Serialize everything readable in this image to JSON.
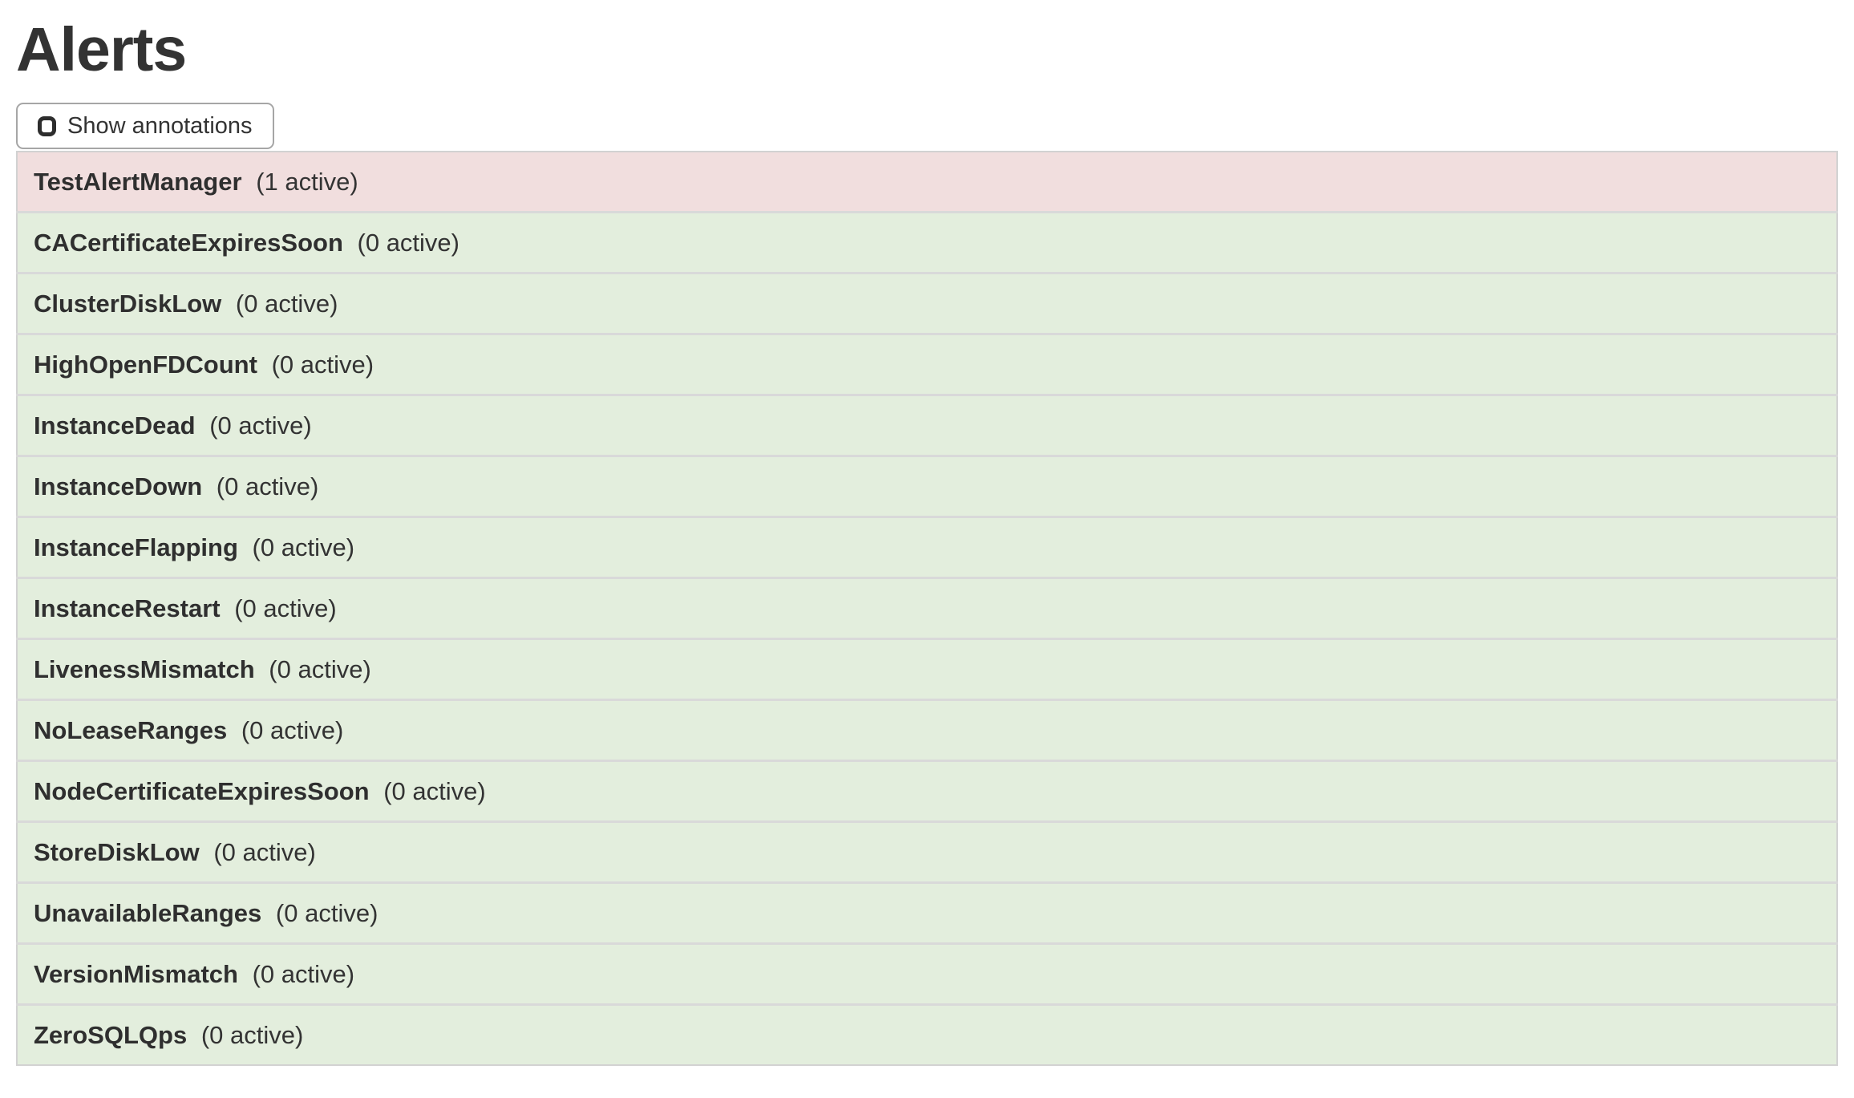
{
  "page": {
    "title": "Alerts"
  },
  "toolbar": {
    "show_annotations_label": "Show annotations",
    "checkbox_checked": false
  },
  "colors": {
    "firing_bg": "#f1dede",
    "inactive_bg": "#e3eedd",
    "row_border": "#d9d9d9",
    "text": "#333333"
  },
  "alerts": [
    {
      "name": "TestAlertManager",
      "active_count": 1,
      "count_label": "(1 active)",
      "state": "firing"
    },
    {
      "name": "CACertificateExpiresSoon",
      "active_count": 0,
      "count_label": "(0 active)",
      "state": "inactive"
    },
    {
      "name": "ClusterDiskLow",
      "active_count": 0,
      "count_label": "(0 active)",
      "state": "inactive"
    },
    {
      "name": "HighOpenFDCount",
      "active_count": 0,
      "count_label": "(0 active)",
      "state": "inactive"
    },
    {
      "name": "InstanceDead",
      "active_count": 0,
      "count_label": "(0 active)",
      "state": "inactive"
    },
    {
      "name": "InstanceDown",
      "active_count": 0,
      "count_label": "(0 active)",
      "state": "inactive"
    },
    {
      "name": "InstanceFlapping",
      "active_count": 0,
      "count_label": "(0 active)",
      "state": "inactive"
    },
    {
      "name": "InstanceRestart",
      "active_count": 0,
      "count_label": "(0 active)",
      "state": "inactive"
    },
    {
      "name": "LivenessMismatch",
      "active_count": 0,
      "count_label": "(0 active)",
      "state": "inactive"
    },
    {
      "name": "NoLeaseRanges",
      "active_count": 0,
      "count_label": "(0 active)",
      "state": "inactive"
    },
    {
      "name": "NodeCertificateExpiresSoon",
      "active_count": 0,
      "count_label": "(0 active)",
      "state": "inactive"
    },
    {
      "name": "StoreDiskLow",
      "active_count": 0,
      "count_label": "(0 active)",
      "state": "inactive"
    },
    {
      "name": "UnavailableRanges",
      "active_count": 0,
      "count_label": "(0 active)",
      "state": "inactive"
    },
    {
      "name": "VersionMismatch",
      "active_count": 0,
      "count_label": "(0 active)",
      "state": "inactive"
    },
    {
      "name": "ZeroSQLQps",
      "active_count": 0,
      "count_label": "(0 active)",
      "state": "inactive"
    }
  ]
}
